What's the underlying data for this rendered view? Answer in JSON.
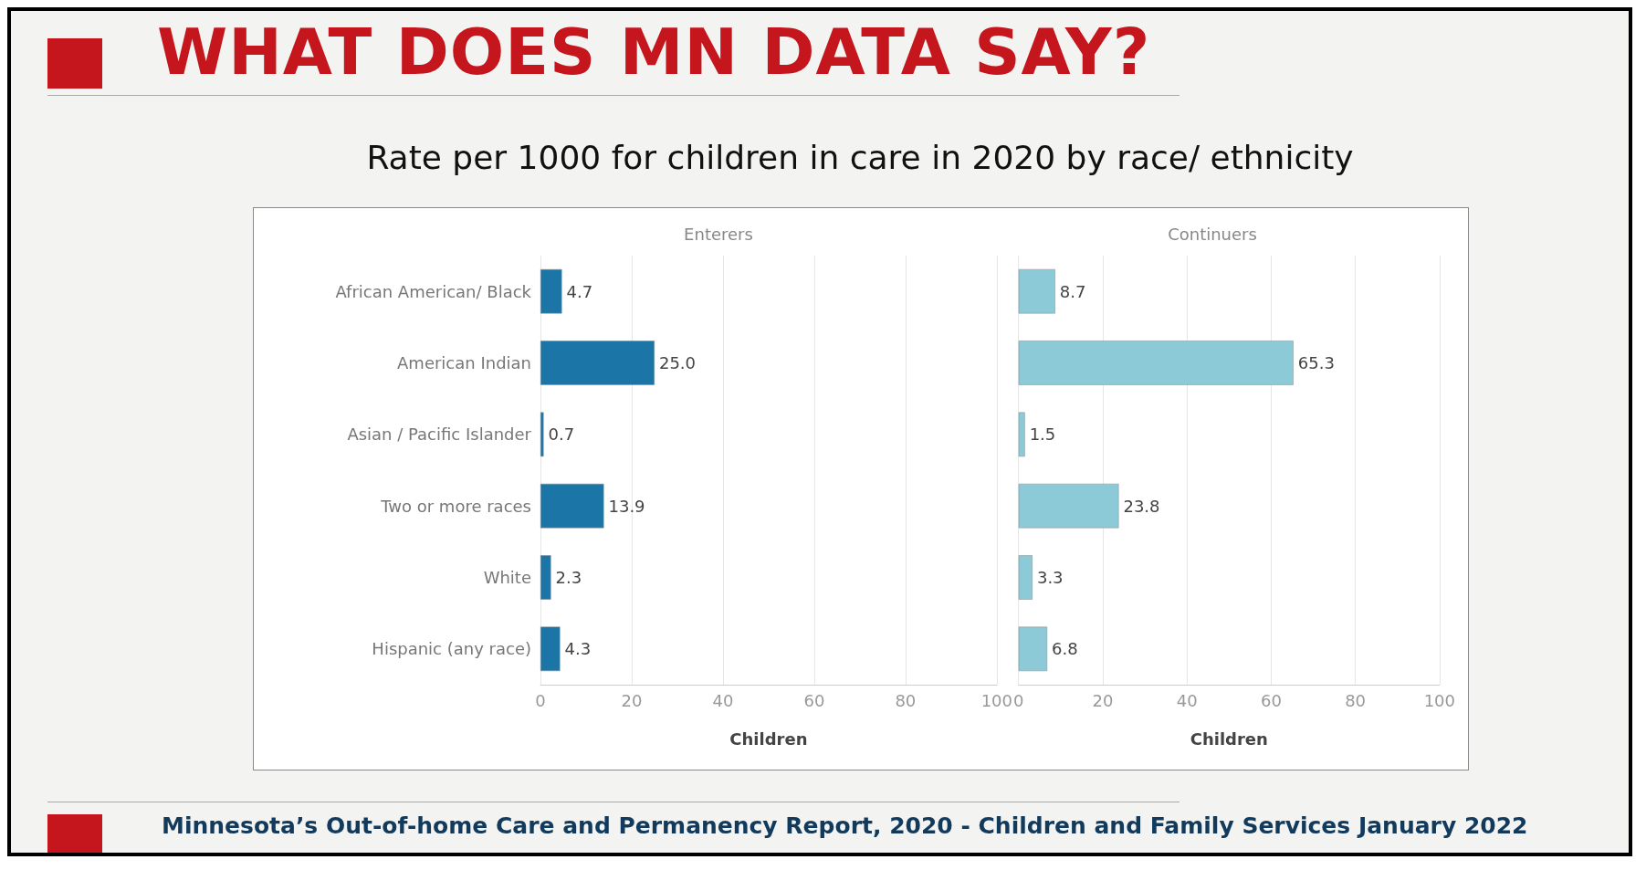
{
  "chart_data": [
    {
      "type": "other",
      "title": "WHAT DOES MN DATA SAY?",
      "subtitle": "Rate per 1000 for children in care in 2020 by race/ ethnicity",
      "annotations": [
        "Minnesota’s Out-of-home Care and Permanency Report, 2020 - Children and Family Services January 2022"
      ]
    },
    {
      "type": "bar",
      "orientation": "horizontal",
      "title": "Enterers",
      "xlabel": "Children",
      "categories": [
        "African American/ Black",
        "American Indian",
        "Asian / Pacific Islander",
        "Two or more races",
        "White",
        "Hispanic (any race)"
      ],
      "values": [
        4.7,
        25.0,
        0.7,
        13.9,
        2.3,
        4.3
      ],
      "value_labels": [
        "4.7",
        "25.0",
        "0.7",
        "13.9",
        "2.3",
        "4.3"
      ],
      "color": "#1b75a6",
      "xlim": [
        0,
        100
      ],
      "xticks": [
        0,
        20,
        40,
        60,
        80,
        100
      ],
      "grid": "x"
    },
    {
      "type": "bar",
      "orientation": "horizontal",
      "title": "Continuers",
      "xlabel": "Children",
      "values": [
        8.7,
        65.3,
        1.5,
        23.8,
        3.3,
        6.8
      ],
      "value_labels": [
        "8.7",
        "65.3",
        "1.5",
        "23.8",
        "3.3",
        "6.8"
      ],
      "color": "#8ccad8",
      "xlim": [
        0,
        100
      ],
      "xticks": [
        0,
        20,
        40,
        60,
        80,
        100
      ],
      "grid": "x",
      "tick_labels": "x"
    }
  ]
}
